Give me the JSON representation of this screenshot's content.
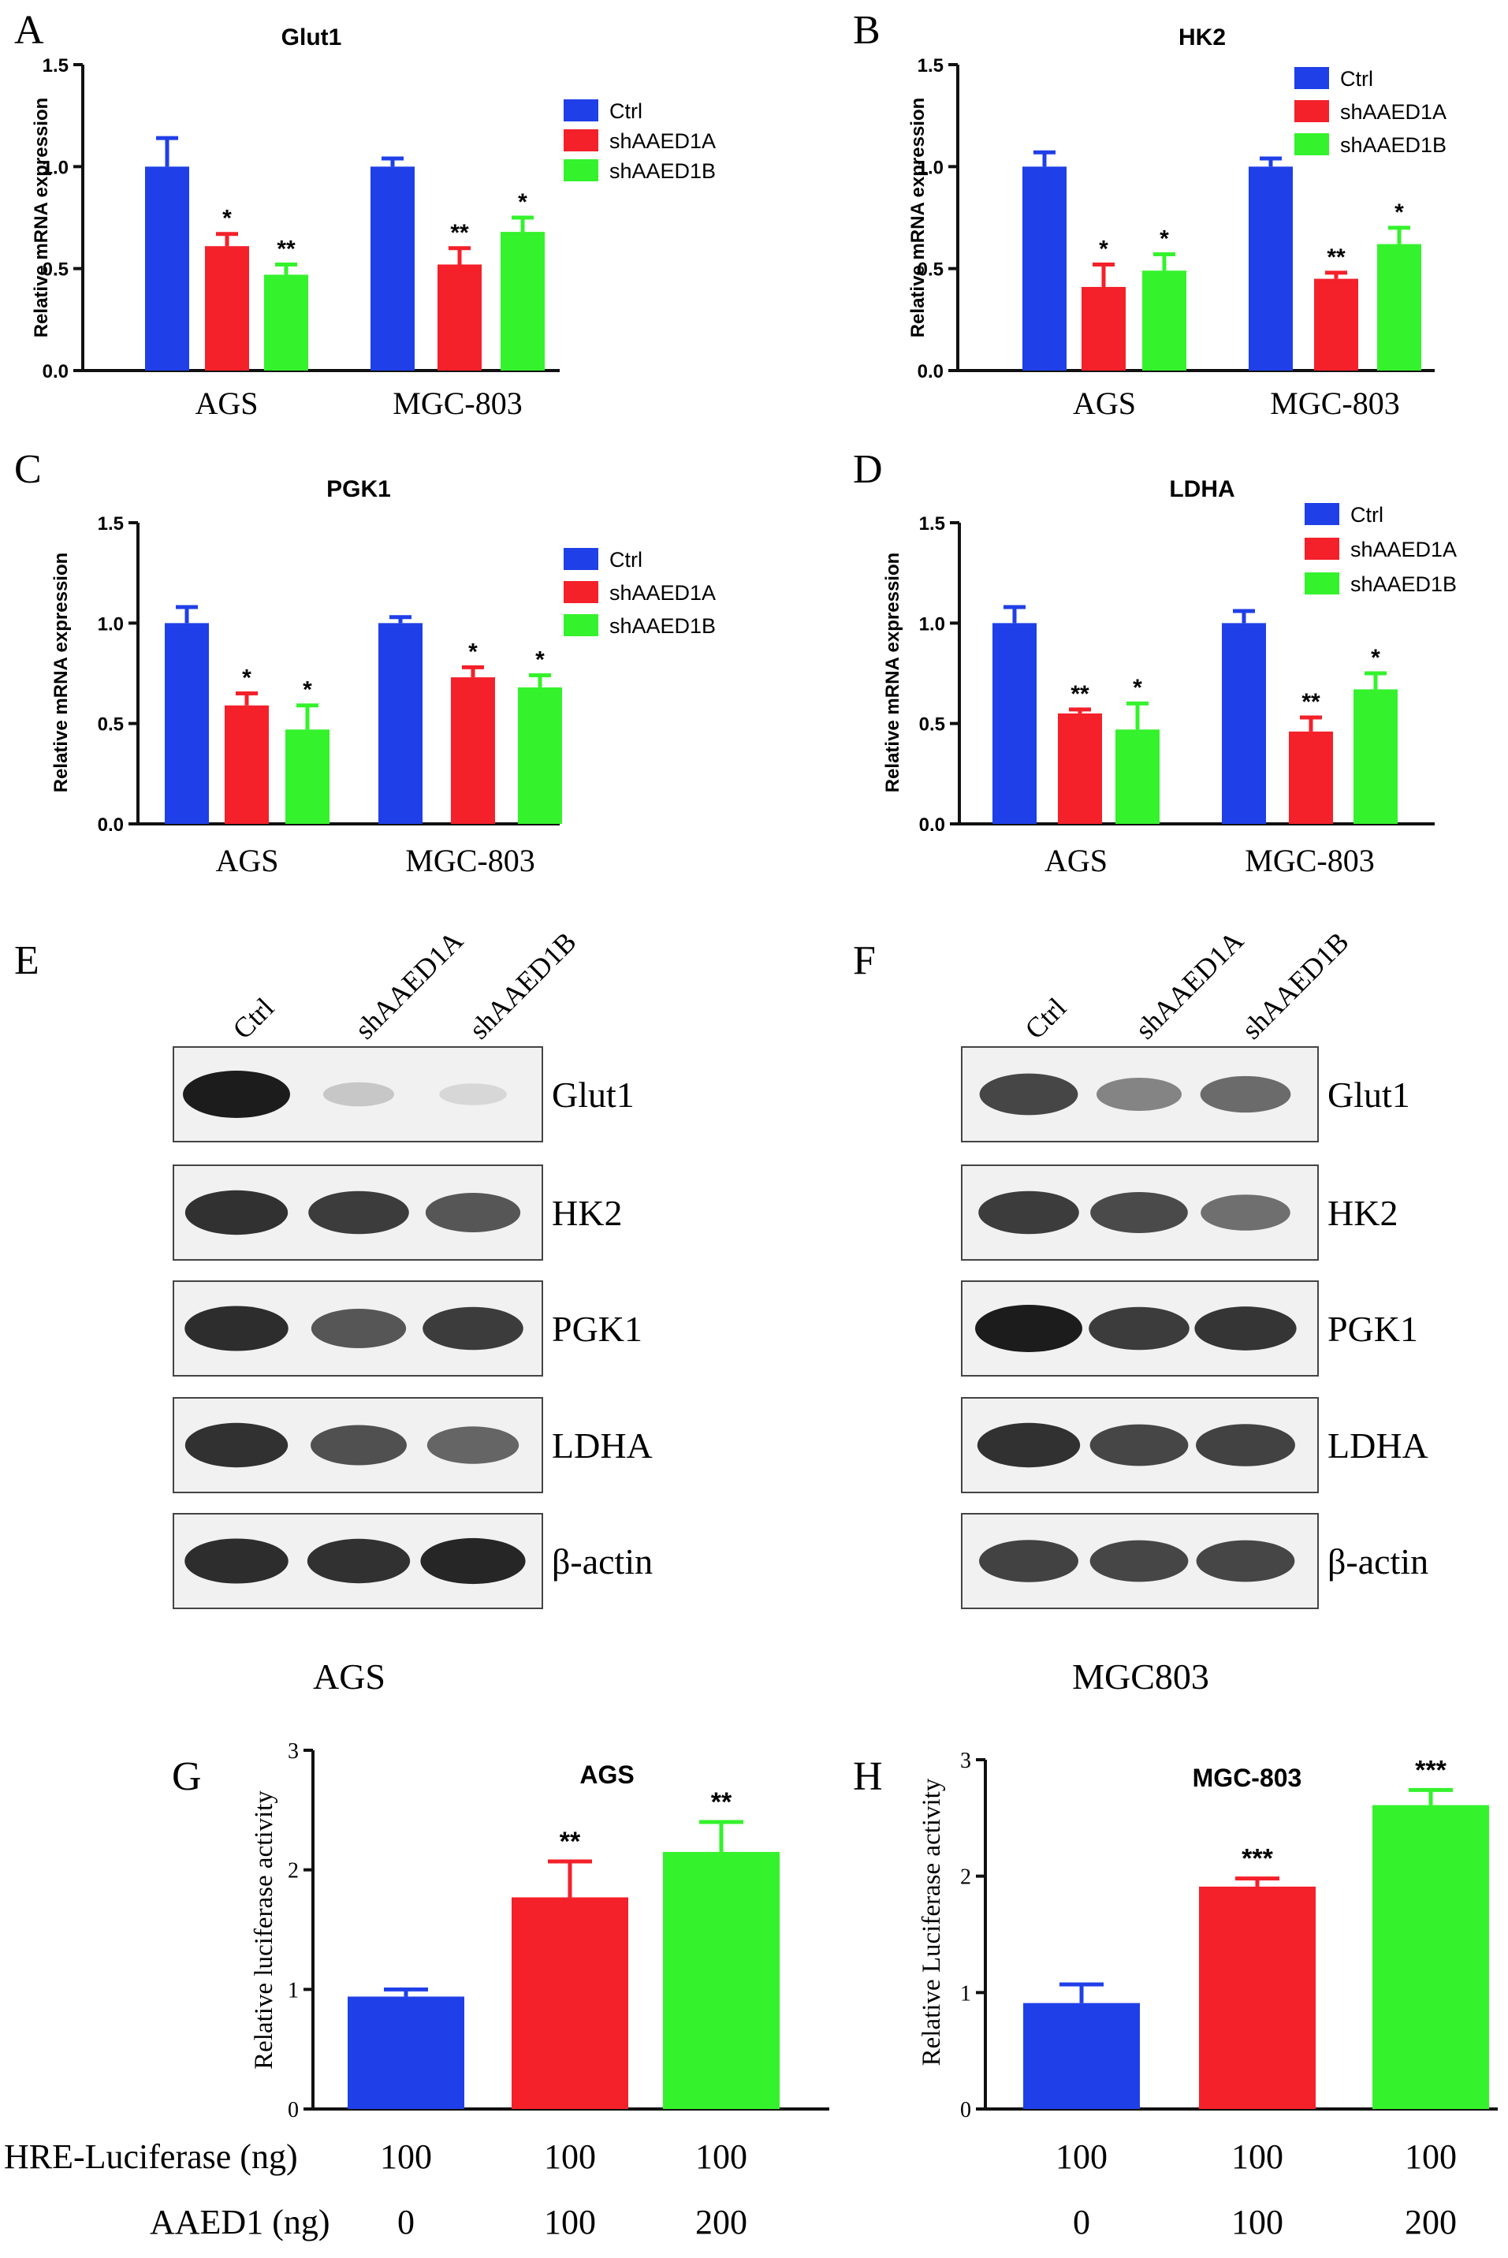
{
  "colors": {
    "Ctrl": "#1f3fe8",
    "shAAED1A": "#f4202a",
    "shAAED1B": "#34f22c",
    "axis": "#111111"
  },
  "chart_data": [
    {
      "panel": "A",
      "type": "bar",
      "title": "Glut1",
      "ylabel": "Relative mRNA expression",
      "ylim": [
        0,
        1.5
      ],
      "yticks": [
        "0.0",
        "0.5",
        "1.0",
        "1.5"
      ],
      "categories": [
        "AGS",
        "MGC-803"
      ],
      "legend_position": "top-right",
      "series": [
        {
          "name": "Ctrl",
          "values": [
            1.0,
            1.0
          ],
          "errors": [
            0.14,
            0.04
          ],
          "sig": [
            "",
            ""
          ]
        },
        {
          "name": "shAAED1A",
          "values": [
            0.61,
            0.52
          ],
          "errors": [
            0.06,
            0.08
          ],
          "sig": [
            "*",
            "**"
          ]
        },
        {
          "name": "shAAED1B",
          "values": [
            0.47,
            0.68
          ],
          "errors": [
            0.05,
            0.07
          ],
          "sig": [
            "**",
            "*"
          ]
        }
      ]
    },
    {
      "panel": "B",
      "type": "bar",
      "title": "HK2",
      "ylabel": "Relative mRNA expression",
      "ylim": [
        0,
        1.5
      ],
      "yticks": [
        "0.0",
        "0.5",
        "1.0",
        "1.5"
      ],
      "categories": [
        "AGS",
        "MGC-803"
      ],
      "legend_position": "top-right",
      "series": [
        {
          "name": "Ctrl",
          "values": [
            1.0,
            1.0
          ],
          "errors": [
            0.07,
            0.04
          ],
          "sig": [
            "",
            ""
          ]
        },
        {
          "name": "shAAED1A",
          "values": [
            0.41,
            0.45
          ],
          "errors": [
            0.11,
            0.03
          ],
          "sig": [
            "*",
            "**"
          ]
        },
        {
          "name": "shAAED1B",
          "values": [
            0.49,
            0.62
          ],
          "errors": [
            0.08,
            0.08
          ],
          "sig": [
            "*",
            "*"
          ]
        }
      ]
    },
    {
      "panel": "C",
      "type": "bar",
      "title": "PGK1",
      "ylabel": "Relative mRNA expression",
      "ylim": [
        0,
        1.5
      ],
      "yticks": [
        "0.0",
        "0.5",
        "1.0",
        "1.5"
      ],
      "categories": [
        "AGS",
        "MGC-803"
      ],
      "legend_position": "top-right",
      "series": [
        {
          "name": "Ctrl",
          "values": [
            1.0,
            1.0
          ],
          "errors": [
            0.08,
            0.03
          ],
          "sig": [
            "",
            ""
          ]
        },
        {
          "name": "shAAED1A",
          "values": [
            0.59,
            0.73
          ],
          "errors": [
            0.06,
            0.05
          ],
          "sig": [
            "*",
            "*"
          ]
        },
        {
          "name": "shAAED1B",
          "values": [
            0.47,
            0.68
          ],
          "errors": [
            0.12,
            0.06
          ],
          "sig": [
            "*",
            "*"
          ]
        }
      ]
    },
    {
      "panel": "D",
      "type": "bar",
      "title": "LDHA",
      "ylabel": "Relative mRNA expression",
      "ylim": [
        0,
        1.5
      ],
      "yticks": [
        "0.0",
        "0.5",
        "1.0",
        "1.5"
      ],
      "categories": [
        "AGS",
        "MGC-803"
      ],
      "legend_position": "top-right",
      "series": [
        {
          "name": "Ctrl",
          "values": [
            1.0,
            1.0
          ],
          "errors": [
            0.08,
            0.06
          ],
          "sig": [
            "",
            ""
          ]
        },
        {
          "name": "shAAED1A",
          "values": [
            0.55,
            0.46
          ],
          "errors": [
            0.02,
            0.07
          ],
          "sig": [
            "**",
            "**"
          ]
        },
        {
          "name": "shAAED1B",
          "values": [
            0.47,
            0.67
          ],
          "errors": [
            0.13,
            0.08
          ],
          "sig": [
            "*",
            "*"
          ]
        }
      ]
    },
    {
      "panel": "G",
      "type": "bar",
      "title": "AGS",
      "ylabel": "Relative luciferase activity",
      "ylim": [
        0,
        3
      ],
      "yticks": [
        "0",
        "1",
        "2",
        "3"
      ],
      "categories": [
        "100 / 0",
        "100 / 100",
        "100 / 200"
      ],
      "values": [
        0.94,
        1.77,
        2.15
      ],
      "errors": [
        0.06,
        0.3,
        0.25
      ],
      "sig": [
        "",
        "**",
        "**"
      ],
      "x_rows": [
        {
          "label": "HRE-Luciferase (ng)",
          "values": [
            "100",
            "100",
            "100"
          ]
        },
        {
          "label": "AAED1 (ng)",
          "values": [
            "0",
            "100",
            "200"
          ]
        }
      ]
    },
    {
      "panel": "H",
      "type": "bar",
      "title": "MGC-803",
      "ylabel": "Relative Luciferase activity",
      "ylim": [
        0,
        3
      ],
      "yticks": [
        "0",
        "1",
        "2",
        "3"
      ],
      "categories": [
        "100 / 0",
        "100 / 100",
        "100 / 200"
      ],
      "values": [
        0.91,
        1.91,
        2.61
      ],
      "errors": [
        0.16,
        0.07,
        0.13
      ],
      "sig": [
        "",
        "***",
        "***"
      ],
      "x_rows": [
        {
          "values": [
            "100",
            "100",
            "100"
          ]
        },
        {
          "values": [
            "0",
            "100",
            "200"
          ]
        }
      ]
    }
  ],
  "blots": [
    {
      "panel": "E",
      "cell_line": "AGS",
      "lanes": [
        "Ctrl",
        "shAAED1A",
        "shAAED1B"
      ],
      "proteins": [
        "Glut1",
        "HK2",
        "PGK1",
        "LDHA",
        "β-actin"
      ],
      "band_intensity": [
        [
          1.0,
          0.18,
          0.1
        ],
        [
          0.9,
          0.85,
          0.72
        ],
        [
          0.92,
          0.72,
          0.85
        ],
        [
          0.9,
          0.75,
          0.65
        ],
        [
          0.92,
          0.9,
          0.95
        ]
      ]
    },
    {
      "panel": "F",
      "cell_line": "MGC803",
      "lanes": [
        "Ctrl",
        "shAAED1A",
        "shAAED1B"
      ],
      "proteins": [
        "Glut1",
        "HK2",
        "PGK1",
        "LDHA",
        "β-actin"
      ],
      "band_intensity": [
        [
          0.8,
          0.5,
          0.62
        ],
        [
          0.85,
          0.78,
          0.6
        ],
        [
          1.0,
          0.85,
          0.88
        ],
        [
          0.9,
          0.8,
          0.82
        ],
        [
          0.82,
          0.8,
          0.8
        ]
      ]
    }
  ]
}
